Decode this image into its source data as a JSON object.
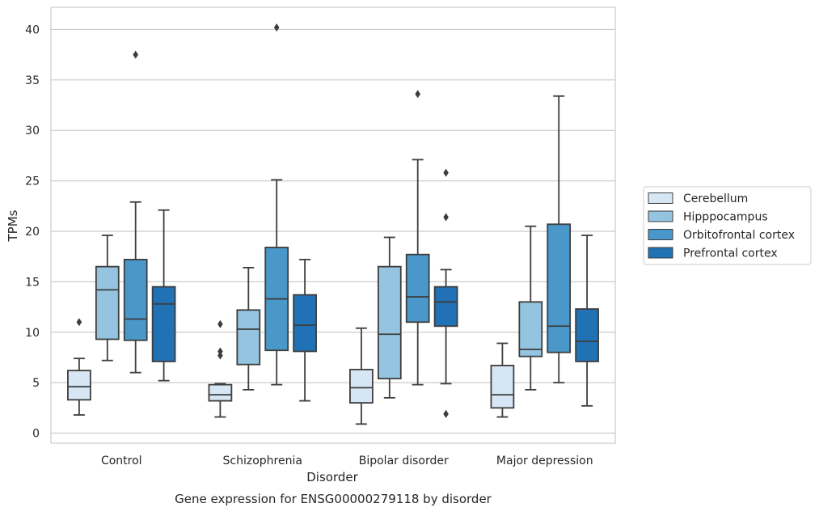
{
  "chart_data": {
    "type": "boxplot",
    "caption": "Gene expression for ENSG00000279118 by disorder",
    "xlabel": "Disorder",
    "ylabel": "TPMs",
    "ylim": [
      -1,
      42.2
    ],
    "yticks": [
      0,
      5,
      10,
      15,
      20,
      25,
      30,
      35,
      40
    ],
    "grid": true,
    "legend_position": "right",
    "categories": [
      "Control",
      "Schizophrenia",
      "Bipolar disorder",
      "Major depression"
    ],
    "series": [
      {
        "name": "Cerebellum",
        "color": "#d6e6f4",
        "boxes": [
          {
            "whislo": 1.8,
            "q1": 3.3,
            "med": 4.6,
            "q3": 6.2,
            "whishi": 7.4,
            "fliers": [
              11.0
            ]
          },
          {
            "whislo": 1.6,
            "q1": 3.2,
            "med": 3.8,
            "q3": 4.8,
            "whishi": 4.9,
            "fliers": [
              10.8,
              8.1,
              7.7
            ]
          },
          {
            "whislo": 0.9,
            "q1": 3.0,
            "med": 4.5,
            "q3": 6.3,
            "whishi": 10.4,
            "fliers": []
          },
          {
            "whislo": 1.6,
            "q1": 2.5,
            "med": 3.8,
            "q3": 6.7,
            "whishi": 8.9,
            "fliers": []
          }
        ]
      },
      {
        "name": "Hipppocampus",
        "color": "#94c4df",
        "boxes": [
          {
            "whislo": 7.2,
            "q1": 9.3,
            "med": 14.2,
            "q3": 16.5,
            "whishi": 19.6,
            "fliers": []
          },
          {
            "whislo": 4.3,
            "q1": 6.8,
            "med": 10.3,
            "q3": 12.2,
            "whishi": 16.4,
            "fliers": []
          },
          {
            "whislo": 3.5,
            "q1": 5.4,
            "med": 9.8,
            "q3": 16.5,
            "whishi": 19.4,
            "fliers": []
          },
          {
            "whislo": 4.3,
            "q1": 7.6,
            "med": 8.3,
            "q3": 13.0,
            "whishi": 20.5,
            "fliers": []
          }
        ]
      },
      {
        "name": "Orbitofrontal cortex",
        "color": "#4a98c9",
        "boxes": [
          {
            "whislo": 6.0,
            "q1": 9.2,
            "med": 11.3,
            "q3": 17.2,
            "whishi": 22.9,
            "fliers": [
              37.5
            ]
          },
          {
            "whislo": 4.8,
            "q1": 8.2,
            "med": 13.3,
            "q3": 18.4,
            "whishi": 25.1,
            "fliers": [
              40.2
            ]
          },
          {
            "whislo": 4.8,
            "q1": 11.0,
            "med": 13.5,
            "q3": 17.7,
            "whishi": 27.1,
            "fliers": [
              33.6
            ]
          },
          {
            "whislo": 5.0,
            "q1": 8.0,
            "med": 10.6,
            "q3": 20.7,
            "whishi": 33.4,
            "fliers": []
          }
        ]
      },
      {
        "name": "Prefrontal cortex",
        "color": "#2171b5",
        "boxes": [
          {
            "whislo": 5.2,
            "q1": 7.1,
            "med": 12.8,
            "q3": 14.5,
            "whishi": 22.1,
            "fliers": []
          },
          {
            "whislo": 3.2,
            "q1": 8.1,
            "med": 10.7,
            "q3": 13.7,
            "whishi": 17.2,
            "fliers": []
          },
          {
            "whislo": 4.9,
            "q1": 10.6,
            "med": 13.0,
            "q3": 14.5,
            "whishi": 16.2,
            "fliers": [
              25.8,
              21.4,
              1.9
            ]
          },
          {
            "whislo": 2.7,
            "q1": 7.1,
            "med": 9.1,
            "q3": 12.3,
            "whishi": 19.6,
            "fliers": []
          }
        ]
      }
    ]
  }
}
